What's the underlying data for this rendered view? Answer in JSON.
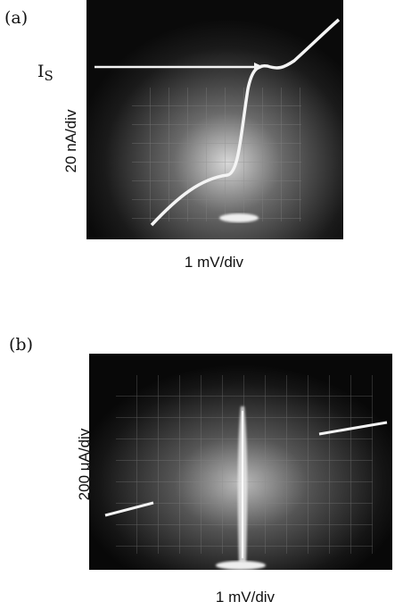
{
  "panels": [
    {
      "label": "(a)",
      "y_label": "20 nA/div",
      "x_label": "1 mV/div",
      "annotation": {
        "main": "I",
        "sub": "S"
      }
    },
    {
      "label": "(b)",
      "y_label": "200 μA/div",
      "x_label": "1 mV/div"
    }
  ]
}
